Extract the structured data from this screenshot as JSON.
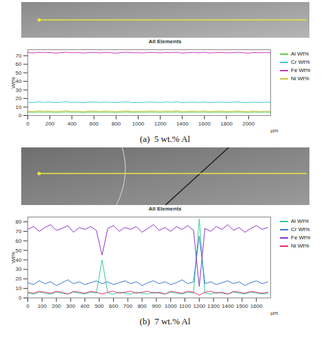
{
  "chart_data": [
    {
      "type": "line",
      "title": "All Elements",
      "caption": "(a)  5 wt.% Al",
      "y_label": "Wt%",
      "x_label": "µm",
      "legend": "right",
      "x": [
        0,
        50,
        100,
        150,
        200,
        250,
        300,
        350,
        400,
        450,
        500,
        550,
        600,
        650,
        700,
        750,
        800,
        850,
        900,
        950,
        1000,
        1050,
        1100,
        1150,
        1200,
        1250,
        1300,
        1350,
        1400,
        1450,
        1500,
        1550,
        1600,
        1650,
        1700,
        1750,
        1800,
        1850,
        1900,
        1950,
        2000,
        2050,
        2100,
        2150,
        2200
      ],
      "series": [
        {
          "name": "Al Wt%",
          "color": "#5ccf4a",
          "values": [
            3.9,
            3.5,
            4.2,
            3.7,
            4.0,
            3.4,
            3.8,
            4.3,
            3.6,
            3.9,
            3.3,
            3.8,
            4.1,
            3.6,
            4.0,
            3.7,
            3.4,
            3.9,
            4.2,
            3.5,
            3.8,
            3.6,
            4.1,
            3.9,
            3.5,
            4.0,
            3.7,
            4.3,
            3.4,
            3.8,
            3.9,
            3.6,
            4.1,
            3.4,
            3.8,
            4.0,
            3.5,
            3.7,
            4.2,
            3.6,
            3.4,
            3.9,
            3.6,
            3.8,
            3.7
          ]
        },
        {
          "name": "Cr Wt%",
          "color": "#3cc8d8",
          "values": [
            15.6,
            15.2,
            16.0,
            15.4,
            15.8,
            15.1,
            15.5,
            16.1,
            15.3,
            15.7,
            15.0,
            15.6,
            15.9,
            15.3,
            15.8,
            15.4,
            15.1,
            15.7,
            16.0,
            15.2,
            15.5,
            15.3,
            15.9,
            15.6,
            15.2,
            15.8,
            15.4,
            16.1,
            15.0,
            15.5,
            15.7,
            15.3,
            15.9,
            15.1,
            15.6,
            15.8,
            15.2,
            15.5,
            16.0,
            15.4,
            15.1,
            15.7,
            15.3,
            15.6,
            15.4
          ]
        },
        {
          "name": "Fe Wt%",
          "color": "#cc33cc",
          "values": [
            73.8,
            73.2,
            74.1,
            73.5,
            73.9,
            73.0,
            73.6,
            74.2,
            73.4,
            73.8,
            73.1,
            73.7,
            74.0,
            73.3,
            73.9,
            73.5,
            72.9,
            73.8,
            74.1,
            73.4,
            73.6,
            73.2,
            74.0,
            73.7,
            73.3,
            73.9,
            73.5,
            74.2,
            73.1,
            73.6,
            73.8,
            73.4,
            74.0,
            73.2,
            73.7,
            73.9,
            73.3,
            73.6,
            74.1,
            73.5,
            73.0,
            73.8,
            73.4,
            73.7,
            73.5
          ]
        },
        {
          "name": "Ni Wt%",
          "color": "#c9c43a",
          "values": [
            5.2,
            4.8,
            5.5,
            5.0,
            5.3,
            4.7,
            5.1,
            5.6,
            4.9,
            5.2,
            4.6,
            5.1,
            5.4,
            4.9,
            5.3,
            5.0,
            4.7,
            5.2,
            5.5,
            4.8,
            5.1,
            4.9,
            5.4,
            5.2,
            4.8,
            5.3,
            5.0,
            5.6,
            4.7,
            5.1,
            5.2,
            4.9,
            5.4,
            4.7,
            5.1,
            5.3,
            4.8,
            5.0,
            5.5,
            4.9,
            4.7,
            5.2,
            4.9,
            5.1,
            5.0
          ]
        }
      ],
      "xlim": [
        0,
        2200
      ],
      "xticks": [
        0,
        200,
        400,
        600,
        800,
        1000,
        1200,
        1400,
        1600,
        1800,
        2000
      ],
      "ylim": [
        0,
        77
      ],
      "yticks": [
        0,
        10,
        20,
        30,
        40,
        50,
        60,
        70
      ]
    },
    {
      "type": "line",
      "title": "All Elements",
      "caption": "(b)  7 wt.% Al",
      "y_label": "Wt%",
      "x_label": "µm",
      "legend": "right",
      "x": [
        0,
        40,
        80,
        120,
        160,
        200,
        240,
        280,
        320,
        360,
        400,
        440,
        480,
        520,
        560,
        600,
        640,
        680,
        720,
        760,
        800,
        840,
        880,
        920,
        960,
        1000,
        1040,
        1080,
        1120,
        1160,
        1200,
        1240,
        1280,
        1320,
        1360,
        1400,
        1440,
        1480,
        1520,
        1560,
        1600,
        1640,
        1680
      ],
      "series": [
        {
          "name": "Al Wt%",
          "color": "#33cc99",
          "values": [
            5,
            4,
            6,
            5,
            4,
            6,
            5,
            4,
            6,
            5,
            4,
            6,
            5,
            40,
            5,
            4,
            6,
            5,
            4,
            6,
            5,
            4,
            6,
            5,
            4,
            6,
            5,
            4,
            6,
            5,
            83,
            5,
            4,
            6,
            5,
            4,
            6,
            5,
            4,
            6,
            5,
            4,
            5
          ]
        },
        {
          "name": "Cr Wt%",
          "color": "#3377cc",
          "values": [
            16,
            14,
            18,
            15,
            17,
            13,
            16,
            19,
            15,
            17,
            14,
            16,
            18,
            15,
            17,
            14,
            16,
            18,
            15,
            17,
            13,
            16,
            18,
            15,
            17,
            14,
            16,
            19,
            15,
            17,
            65,
            15,
            17,
            14,
            16,
            18,
            15,
            17,
            13,
            16,
            18,
            15,
            17
          ]
        },
        {
          "name": "Fe Wt%",
          "color": "#8833cc",
          "values": [
            72,
            75,
            70,
            74,
            77,
            71,
            73,
            76,
            69,
            74,
            72,
            75,
            71,
            45,
            73,
            76,
            70,
            74,
            72,
            75,
            69,
            73,
            77,
            71,
            74,
            70,
            75,
            72,
            76,
            71,
            12,
            73,
            70,
            75,
            72,
            77,
            71,
            74,
            69,
            73,
            76,
            72,
            74
          ]
        },
        {
          "name": "Ni Wt%",
          "color": "#dd3366",
          "values": [
            6,
            5,
            7,
            6,
            5,
            7,
            6,
            4,
            7,
            6,
            5,
            7,
            6,
            4,
            6,
            7,
            5,
            6,
            7,
            5,
            6,
            7,
            5,
            6,
            4,
            7,
            6,
            5,
            7,
            6,
            3,
            6,
            7,
            5,
            6,
            4,
            7,
            6,
            5,
            7,
            6,
            5,
            6
          ]
        }
      ],
      "xlim": [
        0,
        1700
      ],
      "xticks": [
        0,
        100,
        200,
        300,
        400,
        500,
        600,
        700,
        800,
        900,
        1000,
        1100,
        1200,
        1300,
        1400,
        1500,
        1600
      ],
      "ylim": [
        0,
        85
      ],
      "yticks": [
        0,
        10,
        20,
        30,
        40,
        50,
        60,
        70,
        80
      ]
    }
  ]
}
